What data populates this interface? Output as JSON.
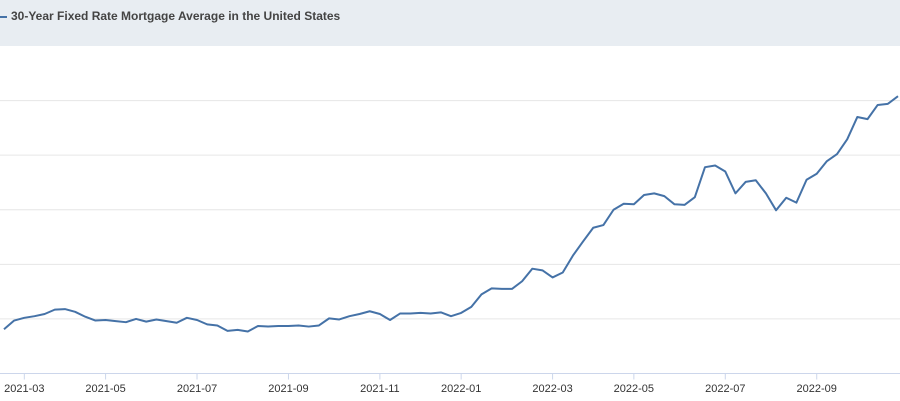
{
  "chart_data": {
    "type": "line",
    "series": [
      {
        "name": "30-Year Fixed Rate Mortgage Average in the United States",
        "color": "#4572a7",
        "values": [
          2.81,
          2.97,
          3.02,
          3.05,
          3.09,
          3.17,
          3.18,
          3.13,
          3.04,
          2.97,
          2.98,
          2.96,
          2.94,
          3.0,
          2.95,
          2.99,
          2.96,
          2.93,
          3.02,
          2.98,
          2.9,
          2.88,
          2.78,
          2.8,
          2.77,
          2.87,
          2.86,
          2.87,
          2.87,
          2.88,
          2.86,
          2.88,
          3.01,
          2.99,
          3.05,
          3.09,
          3.14,
          3.09,
          2.98,
          3.1,
          3.1,
          3.11,
          3.1,
          3.12,
          3.05,
          3.11,
          3.22,
          3.45,
          3.56,
          3.55,
          3.55,
          3.69,
          3.92,
          3.89,
          3.76,
          3.85,
          4.16,
          4.42,
          4.67,
          4.72,
          5.0,
          5.11,
          5.1,
          5.27,
          5.3,
          5.25,
          5.1,
          5.09,
          5.23,
          5.78,
          5.81,
          5.7,
          5.3,
          5.51,
          5.54,
          5.3,
          4.99,
          5.22,
          5.13,
          5.55,
          5.66,
          5.89,
          6.02,
          6.29,
          6.7,
          6.66,
          6.92,
          6.94,
          7.08
        ]
      }
    ],
    "categories": [
      null,
      null,
      "2021-03",
      null,
      null,
      null,
      null,
      null,
      null,
      null,
      "2021-05",
      null,
      null,
      null,
      null,
      null,
      null,
      null,
      null,
      "2021-07",
      null,
      null,
      null,
      null,
      null,
      null,
      null,
      null,
      "2021-09",
      null,
      null,
      null,
      null,
      null,
      null,
      null,
      null,
      "2021-11",
      null,
      null,
      null,
      null,
      null,
      null,
      null,
      "2022-01",
      null,
      null,
      null,
      null,
      null,
      null,
      null,
      null,
      "2022-03",
      null,
      null,
      null,
      null,
      null,
      null,
      null,
      "2022-05",
      null,
      null,
      null,
      null,
      null,
      null,
      null,
      null,
      "2022-07",
      null,
      null,
      null,
      null,
      null,
      null,
      null,
      null,
      "2022-09",
      null,
      null,
      null,
      null,
      null,
      null,
      null,
      null
    ],
    "ylim": [
      2,
      8
    ],
    "yticks": [
      3,
      4,
      5,
      6,
      7
    ],
    "grid": true
  }
}
